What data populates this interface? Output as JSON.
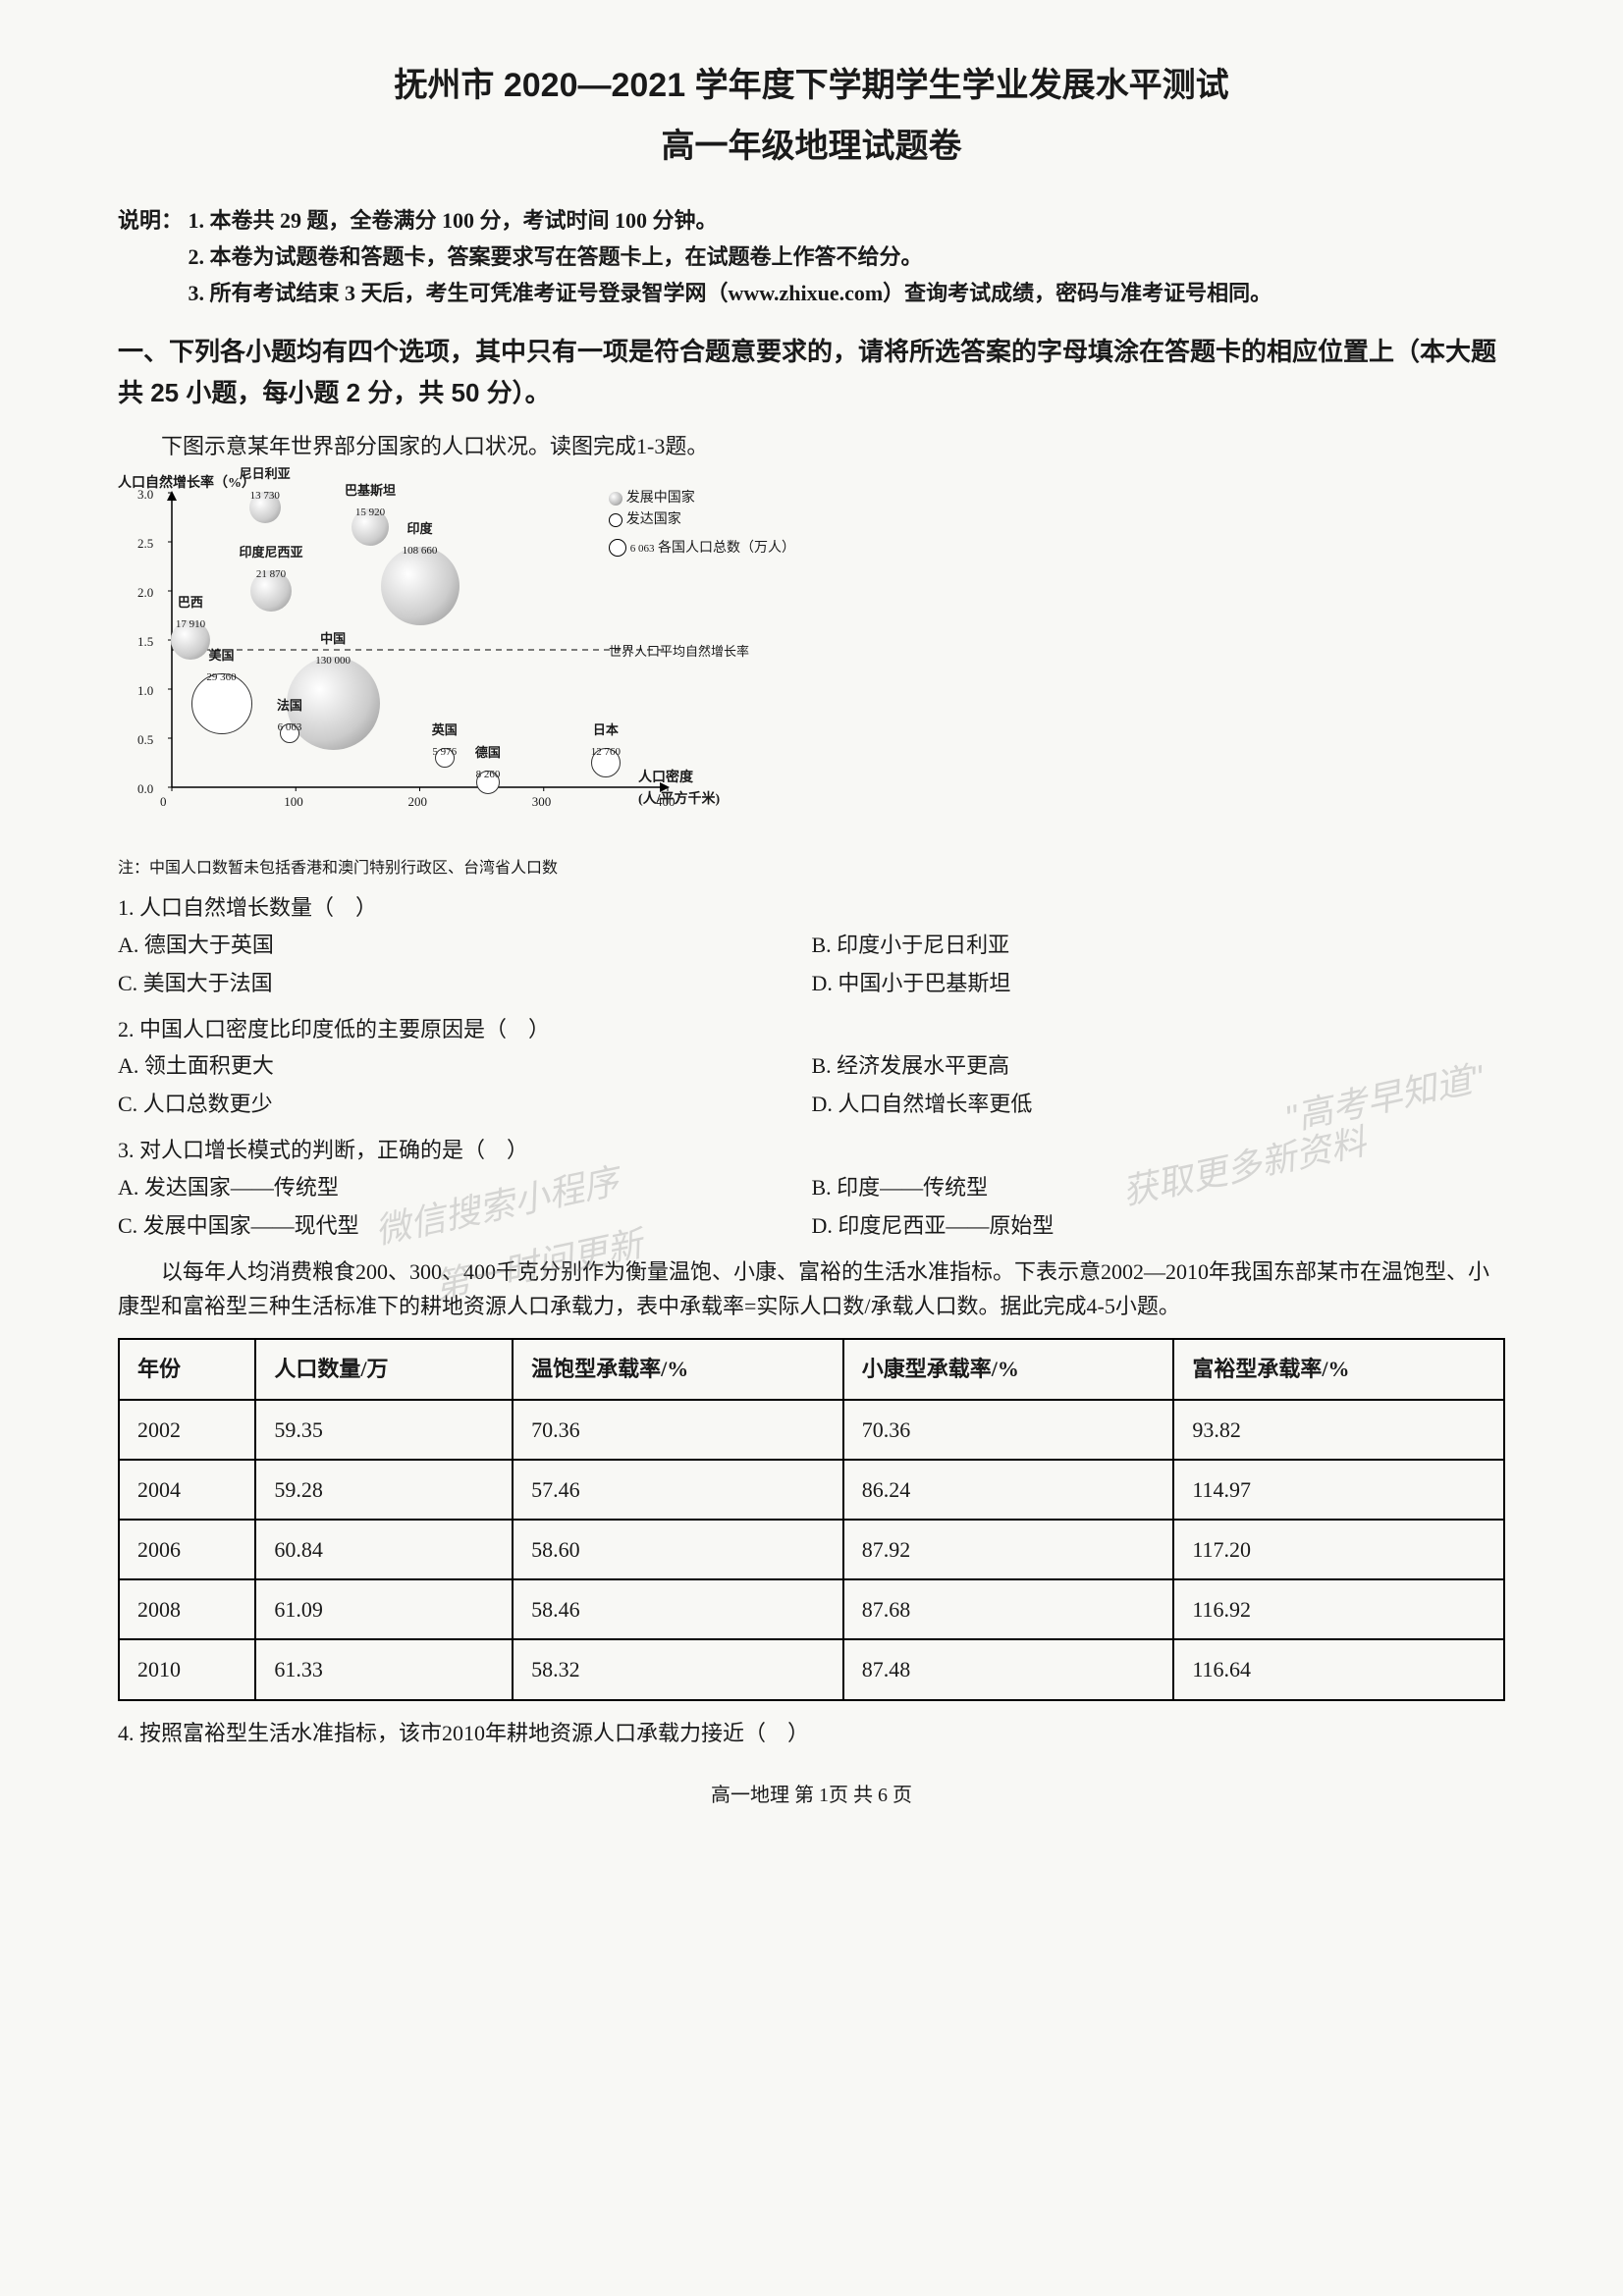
{
  "title": {
    "main": "抚州市 2020—2021 学年度下学期学生学业发展水平测试",
    "sub": "高一年级地理试题卷"
  },
  "instructions": {
    "label": "说明：",
    "items": [
      "1. 本卷共 29 题，全卷满分 100 分，考试时间 100 分钟。",
      "2. 本卷为试题卷和答题卡，答案要求写在答题卡上，在试题卷上作答不给分。",
      "3. 所有考试结束 3 天后，考生可凭准考证号登录智学网（www.zhixue.com）查询考试成绩，密码与准考证号相同。"
    ]
  },
  "section1": {
    "heading": "一、下列各小题均有四个选项，其中只有一项是符合题意要求的，请将所选答案的字母填涂在答题卡的相应位置上（本大题共 25 小题，每小题 2 分，共 50 分）。"
  },
  "passage1": {
    "intro": "下图示意某年世界部分国家的人口状况。读图完成1-3题。"
  },
  "chart": {
    "type": "bubble",
    "title_y": "人口自然增长率（%）",
    "title_x": "人口密度（人/平方千米）",
    "legend": {
      "dev": "发展中国家",
      "developed": "发达国家",
      "size": "各国人口总数（万人）"
    },
    "x_range": [
      0,
      400
    ],
    "x_ticks": [
      0,
      100,
      200,
      300,
      400
    ],
    "y_range": [
      0,
      3.0
    ],
    "y_ticks": [
      0,
      0.5,
      1.0,
      1.5,
      2.0,
      2.5,
      3.0
    ],
    "avg_line_label": "世界人口平均自然增长率",
    "avg_line_y": 1.4,
    "grid_color": "#666666",
    "bg_color": "#f8f8f5",
    "bubble_fill": "#cccccc",
    "bubble_stroke": "#333333",
    "bubbles": [
      {
        "name": "尼日利亚",
        "pop": "13 730",
        "x": 75,
        "y": 2.85,
        "size": 32,
        "type": "dev"
      },
      {
        "name": "巴基斯坦",
        "pop": "15 920",
        "x": 160,
        "y": 2.65,
        "size": 38,
        "type": "dev"
      },
      {
        "name": "印度尼西亚",
        "pop": "21 870",
        "x": 80,
        "y": 2.0,
        "size": 42,
        "type": "dev"
      },
      {
        "name": "印度",
        "pop": "108 660",
        "x": 200,
        "y": 2.05,
        "size": 80,
        "type": "dev"
      },
      {
        "name": "巴西",
        "pop": "17 910",
        "x": 15,
        "y": 1.5,
        "size": 40,
        "type": "dev"
      },
      {
        "name": "美国",
        "pop": "29 360",
        "x": 40,
        "y": 0.85,
        "size": 62,
        "type": "developed"
      },
      {
        "name": "中国",
        "pop": "130 000",
        "x": 130,
        "y": 0.85,
        "size": 95,
        "type": "dev"
      },
      {
        "name": "法国",
        "pop": "6 063",
        "x": 95,
        "y": 0.55,
        "size": 20,
        "type": "developed"
      },
      {
        "name": "英国",
        "pop": "5 976",
        "x": 220,
        "y": 0.3,
        "size": 20,
        "type": "developed"
      },
      {
        "name": "德国",
        "pop": "8 260",
        "x": 255,
        "y": 0.05,
        "size": 24,
        "type": "developed"
      },
      {
        "name": "日本",
        "pop": "12 760",
        "x": 350,
        "y": 0.25,
        "size": 30,
        "type": "developed"
      }
    ],
    "legend_size_value": "6 063",
    "footnote": "注：中国人口数暂未包括香港和澳门特别行政区、台湾省人口数"
  },
  "questions": [
    {
      "num": "1.",
      "stem": "人口自然增长数量（　）",
      "options": [
        {
          "key": "A.",
          "text": "德国大于英国"
        },
        {
          "key": "B.",
          "text": "印度小于尼日利亚"
        },
        {
          "key": "C.",
          "text": "美国大于法国"
        },
        {
          "key": "D.",
          "text": "中国小于巴基斯坦"
        }
      ]
    },
    {
      "num": "2.",
      "stem": "中国人口密度比印度低的主要原因是（　）",
      "options": [
        {
          "key": "A.",
          "text": "领土面积更大"
        },
        {
          "key": "B.",
          "text": "经济发展水平更高"
        },
        {
          "key": "C.",
          "text": "人口总数更少"
        },
        {
          "key": "D.",
          "text": "人口自然增长率更低"
        }
      ]
    },
    {
      "num": "3.",
      "stem": "对人口增长模式的判断，正确的是（　）",
      "options": [
        {
          "key": "A.",
          "text": "发达国家——传统型"
        },
        {
          "key": "B.",
          "text": "印度——传统型"
        },
        {
          "key": "C.",
          "text": "发展中国家——现代型"
        },
        {
          "key": "D.",
          "text": "印度尼西亚——原始型"
        }
      ]
    }
  ],
  "passage2": {
    "intro": "以每年人均消费粮食200、300、400千克分别作为衡量温饱、小康、富裕的生活水准指标。下表示意2002—2010年我国东部某市在温饱型、小康型和富裕型三种生活标准下的耕地资源人口承载力，表中承载率=实际人口数/承载人口数。据此完成4-5小题。"
  },
  "table": {
    "columns": [
      "年份",
      "人口数量/万",
      "温饱型承载率/%",
      "小康型承载率/%",
      "富裕型承载率/%"
    ],
    "rows": [
      [
        "2002",
        "59.35",
        "70.36",
        "70.36",
        "93.82"
      ],
      [
        "2004",
        "59.28",
        "57.46",
        "86.24",
        "114.97"
      ],
      [
        "2006",
        "60.84",
        "58.60",
        "87.92",
        "117.20"
      ],
      [
        "2008",
        "61.09",
        "58.46",
        "87.68",
        "116.92"
      ],
      [
        "2010",
        "61.33",
        "58.32",
        "87.48",
        "116.64"
      ]
    ]
  },
  "q4": {
    "num": "4.",
    "stem": "按照富裕型生活水准指标，该市2010年耕地资源人口承载力接近（　）"
  },
  "watermarks": {
    "w1": "\"高考早知道\"",
    "w2": "获取更多新资料",
    "w3": "微信搜索小程序",
    "w4": "第一时间更新"
  },
  "footer": "高一地理 第 1页  共 6 页"
}
